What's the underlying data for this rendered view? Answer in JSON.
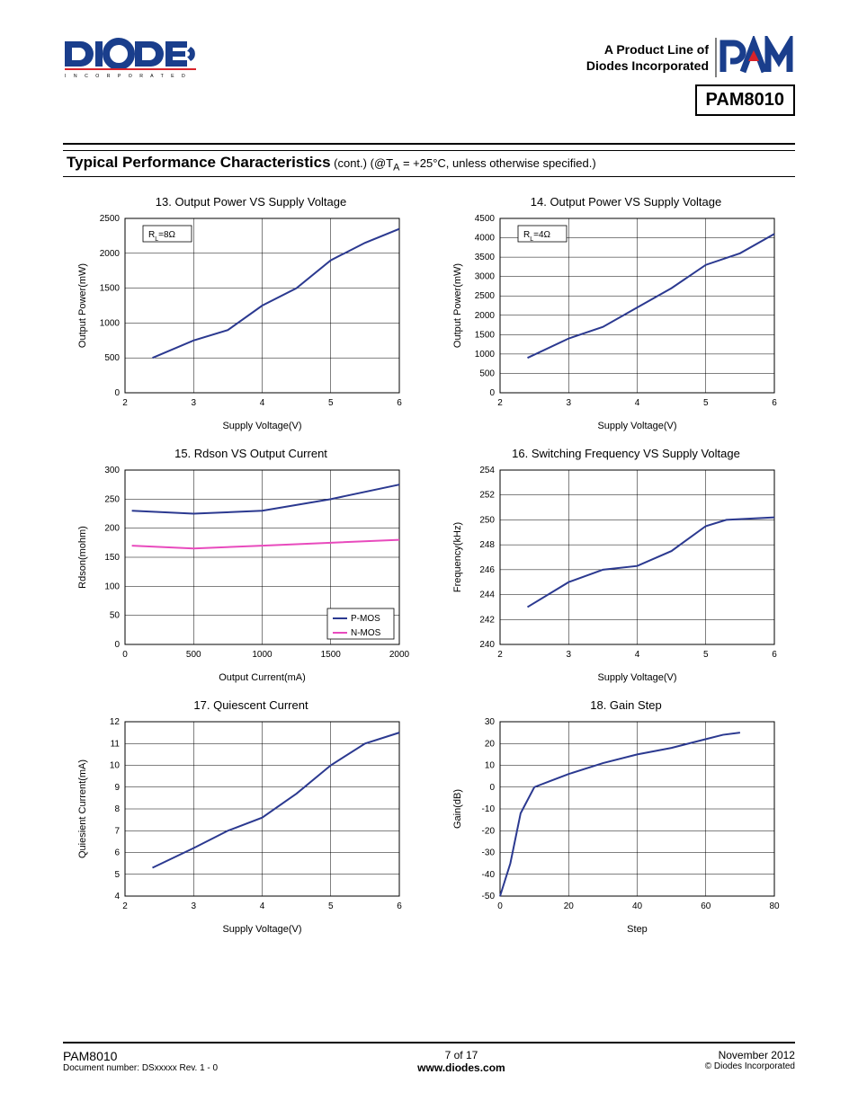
{
  "header": {
    "tagline_line1": "A Product Line of",
    "tagline_line2": "Diodes Incorporated",
    "part_number": "PAM8010",
    "logo_left_primary": "#1a3e8c",
    "logo_right_stroke": "#1a3e8c",
    "logo_right_fill": "#d8232a"
  },
  "section": {
    "title": "Typical Performance Characteristics",
    "subtitle": " (cont.) (@T",
    "subtitle_sub": "A",
    "subtitle_tail": " = +25°C, unless otherwise specified.)"
  },
  "footer": {
    "part": "PAM8010",
    "docnum": "Document number: DSxxxxx Rev. 1 - 0",
    "page": "7 of 17",
    "url": "www.diodes.com",
    "date": "November 2012",
    "copyright": "© Diodes Incorporated"
  },
  "charts": {
    "c13": {
      "title": "13. Output Power VS Supply Voltage",
      "xlabel": "Supply Voltage(V)",
      "ylabel": "Output Power(mW)",
      "xlim": [
        2,
        6
      ],
      "ylim": [
        0,
        2500
      ],
      "xtick_step": 1,
      "ytick_step": 500,
      "note": "R",
      "note_sub": "L",
      "note_tail": "=8Ω",
      "series": [
        [
          2.4,
          500
        ],
        [
          3,
          750
        ],
        [
          3.5,
          900
        ],
        [
          4,
          1250
        ],
        [
          4.5,
          1500
        ],
        [
          5,
          1900
        ],
        [
          5.5,
          2150
        ],
        [
          6,
          2350
        ]
      ],
      "color": "#2b3990"
    },
    "c14": {
      "title": "14. Output Power VS Supply Voltage",
      "xlabel": "Supply Voltage(V)",
      "ylabel": "Output Power(mW)",
      "xlim": [
        2,
        6
      ],
      "ylim": [
        0,
        4500
      ],
      "xtick_step": 1,
      "ytick_step": 500,
      "note": "R",
      "note_sub": "L",
      "note_tail": "=4Ω",
      "series": [
        [
          2.4,
          900
        ],
        [
          3,
          1400
        ],
        [
          3.5,
          1700
        ],
        [
          4,
          2200
        ],
        [
          4.5,
          2700
        ],
        [
          5,
          3300
        ],
        [
          5.5,
          3600
        ],
        [
          6,
          4100
        ]
      ],
      "color": "#2b3990"
    },
    "c15": {
      "title": "15. Rdson VS Output Current",
      "xlabel": "Output Current(mA)",
      "ylabel": "Rdson(mohm)",
      "xlim": [
        0,
        2000
      ],
      "ylim": [
        0,
        300
      ],
      "xtick_step": 500,
      "ytick_step": 50,
      "legend": [
        {
          "label": "P-MOS",
          "color": "#2b3990"
        },
        {
          "label": "N-MOS",
          "color": "#e84bbd"
        }
      ],
      "series_a": [
        [
          50,
          230
        ],
        [
          500,
          225
        ],
        [
          1000,
          230
        ],
        [
          1500,
          250
        ],
        [
          2000,
          275
        ]
      ],
      "series_b": [
        [
          50,
          170
        ],
        [
          500,
          165
        ],
        [
          1000,
          170
        ],
        [
          1500,
          175
        ],
        [
          2000,
          180
        ]
      ],
      "color_a": "#2b3990",
      "color_b": "#e84bbd"
    },
    "c16": {
      "title": "16. Switching Frequency VS Supply Voltage",
      "xlabel": "Supply Voltage(V)",
      "ylabel": "Frequency(kHz)",
      "xlim": [
        2,
        6
      ],
      "ylim": [
        240,
        254
      ],
      "xtick_step": 1,
      "ytick_step": 2,
      "series": [
        [
          2.4,
          243
        ],
        [
          3,
          245
        ],
        [
          3.5,
          246
        ],
        [
          4,
          246.3
        ],
        [
          4.5,
          247.5
        ],
        [
          5,
          249.5
        ],
        [
          5.3,
          250
        ],
        [
          6,
          250.2
        ]
      ],
      "color": "#2b3990"
    },
    "c17": {
      "title": "17. Quiescent Current",
      "xlabel": "Supply Voltage(V)",
      "ylabel": "Quiesient Current(mA)",
      "xlim": [
        2,
        6
      ],
      "ylim": [
        4,
        12
      ],
      "xtick_step": 1,
      "ytick_step": 1,
      "series": [
        [
          2.4,
          5.3
        ],
        [
          3,
          6.2
        ],
        [
          3.5,
          7
        ],
        [
          4,
          7.6
        ],
        [
          4.5,
          8.7
        ],
        [
          5,
          10
        ],
        [
          5.5,
          11
        ],
        [
          6,
          11.5
        ]
      ],
      "color": "#2b3990"
    },
    "c18": {
      "title": "18. Gain Step",
      "xlabel": "Step",
      "ylabel": "Gain(dB)",
      "xlim": [
        0,
        80
      ],
      "ylim": [
        -50,
        30
      ],
      "xtick_step": 20,
      "ytick_step": 10,
      "series": [
        [
          0,
          -50
        ],
        [
          3,
          -35
        ],
        [
          6,
          -12
        ],
        [
          10,
          0
        ],
        [
          15,
          3
        ],
        [
          20,
          6
        ],
        [
          30,
          11
        ],
        [
          40,
          15
        ],
        [
          50,
          18
        ],
        [
          60,
          22
        ],
        [
          65,
          24
        ],
        [
          70,
          25
        ]
      ],
      "color": "#2b3990"
    }
  },
  "style": {
    "grid_color": "#000000",
    "axis_fontsize": 11,
    "tick_fontsize": 10,
    "title_fontsize": 13,
    "line_width": 2,
    "bg": "#ffffff"
  }
}
